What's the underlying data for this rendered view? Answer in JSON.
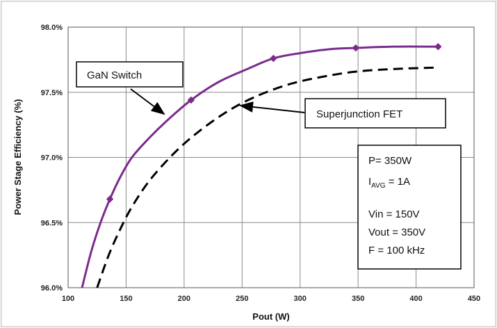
{
  "chart_data": {
    "type": "line",
    "xlabel": "Pout (W)",
    "ylabel": "Power Stage Efficiency (%)",
    "xlim": [
      100,
      450
    ],
    "ylim": [
      96.0,
      98.0
    ],
    "x_ticks": [
      "100",
      "150",
      "200",
      "250",
      "300",
      "350",
      "400",
      "450"
    ],
    "y_ticks": [
      "96.0%",
      "96.5%",
      "97.0%",
      "97.5%",
      "98.0%"
    ],
    "grid": true,
    "series": [
      {
        "name": "GaN Switch",
        "color": "#7b2a8c",
        "style": "solid",
        "markers": true,
        "x": [
          112,
          120,
          128,
          136,
          145,
          155,
          170,
          185,
          206,
          230,
          255,
          277,
          300,
          325,
          348,
          380,
          419
        ],
        "y": [
          96.0,
          96.28,
          96.5,
          96.68,
          96.85,
          97.0,
          97.15,
          97.28,
          97.44,
          97.58,
          97.68,
          97.76,
          97.8,
          97.83,
          97.84,
          97.85,
          97.85
        ]
      },
      {
        "name": "Superjunction FET",
        "color": "#000000",
        "style": "dashed",
        "markers": false,
        "x": [
          125,
          135,
          145,
          155,
          170,
          190,
          210,
          235,
          260,
          290,
          320,
          350,
          385,
          419
        ],
        "y": [
          96.0,
          96.25,
          96.45,
          96.62,
          96.82,
          97.02,
          97.18,
          97.34,
          97.46,
          97.56,
          97.62,
          97.66,
          97.68,
          97.69
        ]
      }
    ],
    "annotations": [
      {
        "text": "GaN Switch",
        "points_to_x": 185,
        "points_to_y": 97.3
      },
      {
        "text": "Superjunction FET",
        "points_to_x": 245,
        "points_to_y": 97.4
      }
    ],
    "conditions": {
      "p_line": "P= 350W",
      "iavg_main": "I",
      "iavg_sub": "AVG",
      "iavg_value": " = 1A",
      "vin": "Vin = 150V",
      "vout": "Vout = 350V",
      "freq": "F = 100 kHz"
    }
  }
}
